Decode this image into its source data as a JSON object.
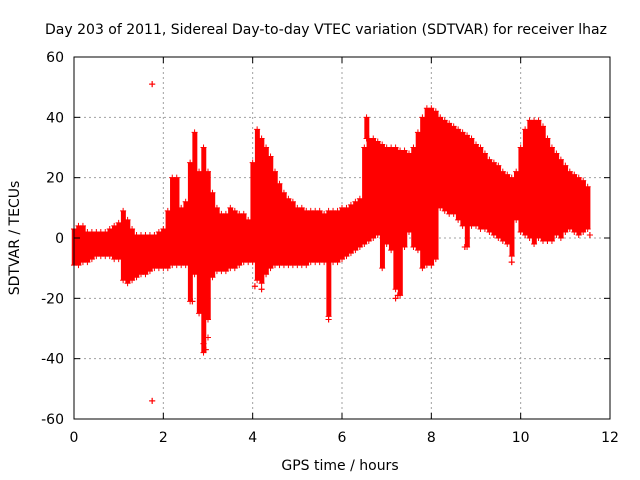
{
  "chart_data": {
    "type": "scatter",
    "title": "Day 203 of 2011, Sidereal Day-to-day VTEC variation (SDTVAR) for receiver lhaz",
    "xlabel": "GPS time / hours",
    "ylabel": "SDTVAR / TECUs",
    "xlim": [
      0,
      12
    ],
    "ylim": [
      -60,
      60
    ],
    "x_ticks": [
      0,
      2,
      4,
      6,
      8,
      10,
      12
    ],
    "y_ticks": [
      -60,
      -40,
      -20,
      0,
      20,
      40,
      60
    ],
    "grid": true,
    "marker": "+",
    "color": "#ff0000",
    "series": [
      {
        "x": [
          0.0,
          0.1,
          0.2,
          0.3,
          0.4,
          0.5,
          0.6,
          0.7,
          0.8,
          0.9,
          1.0,
          1.1,
          1.2,
          1.3,
          1.4,
          1.5,
          1.6,
          1.7,
          1.8,
          1.9,
          2.0,
          2.1,
          2.2,
          2.3,
          2.4,
          2.5,
          2.6,
          2.7,
          2.8,
          2.9,
          3.0,
          3.1,
          3.2,
          3.3,
          3.4,
          3.5,
          3.6,
          3.7,
          3.8,
          3.9,
          4.0,
          4.1,
          4.2,
          4.3,
          4.4,
          4.5,
          4.6,
          4.7,
          4.8,
          4.9,
          5.0,
          5.1,
          5.2,
          5.3,
          5.4,
          5.5,
          5.6,
          5.7,
          5.8,
          5.9,
          6.0,
          6.1,
          6.2,
          6.3,
          6.4,
          6.5,
          6.6,
          6.7,
          6.8,
          6.9,
          7.0,
          7.1,
          7.2,
          7.3,
          7.4,
          7.5,
          7.6,
          7.7,
          7.8,
          7.9,
          8.0,
          8.1,
          8.2,
          8.3,
          8.4,
          8.5,
          8.6,
          8.7,
          8.8,
          8.9,
          9.0,
          9.1,
          9.2,
          9.3,
          9.4,
          9.5,
          9.6,
          9.7,
          9.8,
          9.9,
          10.0,
          10.1,
          10.2,
          10.3,
          10.4,
          10.5,
          10.6,
          10.7,
          10.8,
          10.9,
          11.0,
          11.1,
          11.2,
          11.3,
          11.4,
          11.5,
          1.75,
          1.75,
          2.65,
          2.9,
          2.95,
          3.0,
          4.05,
          4.2,
          5.7,
          6.55,
          7.2,
          7.25,
          8.75,
          9.8,
          10.6,
          11.55
        ],
        "y_low": [
          -9,
          -9,
          -8,
          -8,
          -7,
          -6,
          -6,
          -6,
          -6,
          -7,
          -7,
          -14,
          -15,
          -14,
          -13,
          -12,
          -12,
          -11,
          -10,
          -10,
          -10,
          -10,
          -9,
          -9,
          -9,
          -9,
          -21,
          -12,
          -25,
          -38,
          -27,
          -13,
          -11,
          -11,
          -11,
          -10,
          -10,
          -9,
          -8,
          -8,
          -8,
          -14,
          -15,
          -12,
          -10,
          -9,
          -9,
          -9,
          -9,
          -9,
          -9,
          -9,
          -9,
          -8,
          -8,
          -8,
          -8,
          -26,
          -8,
          -8,
          -7,
          -6,
          -5,
          -4,
          -3,
          -2,
          -1,
          0,
          1,
          -10,
          -2,
          -4,
          -17,
          -19,
          -3,
          2,
          -3,
          -4,
          -10,
          -9,
          -9,
          -7,
          10,
          9,
          8,
          8,
          6,
          4,
          -3,
          4,
          4,
          3,
          3,
          2,
          1,
          0,
          -1,
          -2,
          -6,
          6,
          2,
          1,
          0,
          -2,
          0,
          -1,
          -1,
          -1,
          1,
          0,
          2,
          3,
          2,
          1,
          2,
          3,
          51,
          -54,
          -21,
          -35,
          -37,
          -33,
          -16,
          -17,
          -27,
          33,
          -20,
          -19,
          -3,
          -8,
          -1,
          1
        ],
        "y_high": [
          3,
          4,
          4,
          2,
          2,
          2,
          2,
          2,
          3,
          4,
          5,
          9,
          6,
          3,
          1,
          1,
          1,
          1,
          1,
          2,
          3,
          9,
          20,
          20,
          10,
          12,
          25,
          35,
          22,
          30,
          22,
          15,
          10,
          8,
          8,
          10,
          9,
          8,
          8,
          6,
          25,
          36,
          33,
          30,
          27,
          22,
          18,
          15,
          13,
          12,
          10,
          10,
          9,
          9,
          9,
          9,
          8,
          9,
          9,
          9,
          10,
          10,
          11,
          12,
          13,
          30,
          33,
          33,
          32,
          31,
          30,
          30,
          30,
          29,
          29,
          28,
          30,
          35,
          40,
          43,
          43,
          42,
          40,
          39,
          38,
          37,
          36,
          35,
          34,
          33,
          31,
          30,
          28,
          26,
          25,
          24,
          22,
          21,
          20,
          22,
          30,
          36,
          39,
          39,
          39,
          37,
          33,
          30,
          28,
          26,
          24,
          22,
          21,
          20,
          19,
          17,
          51,
          -54,
          -21,
          -35,
          -37,
          -33,
          -16,
          -17,
          -27,
          40,
          -20,
          -19,
          -3,
          -8,
          -1,
          1
        ]
      }
    ]
  }
}
